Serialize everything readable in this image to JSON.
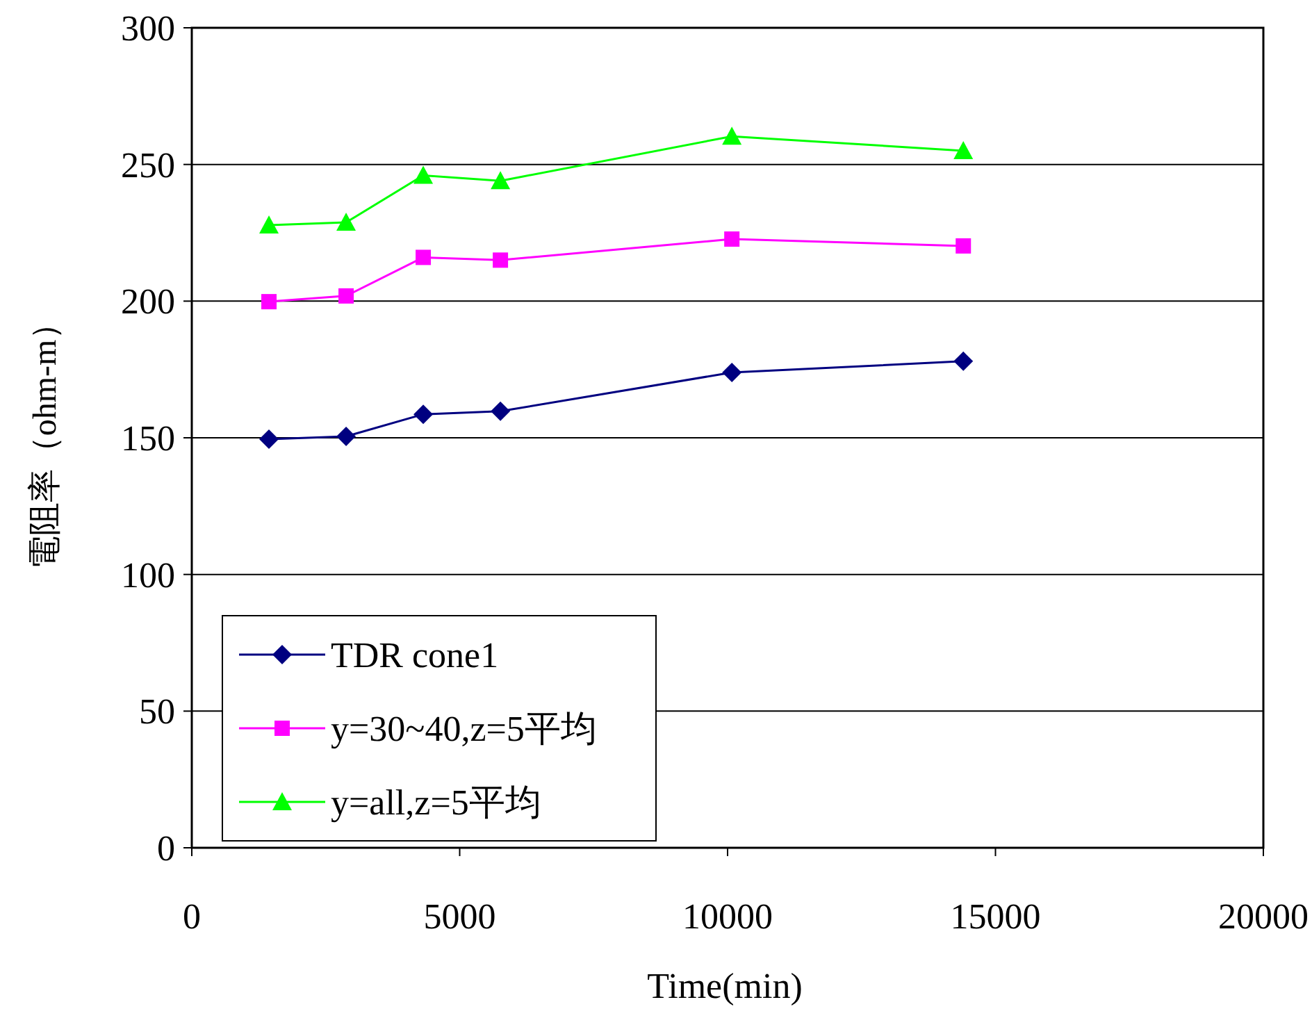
{
  "chart_data": {
    "type": "line",
    "xlabel": "Time(min)",
    "ylabel": "電阻率（ohm-m）",
    "xlim": [
      0,
      20000
    ],
    "xticks": [
      0,
      5000,
      10000,
      15000,
      20000
    ],
    "ylim": [
      0,
      300
    ],
    "yticks": [
      0,
      50,
      100,
      150,
      200,
      250,
      300
    ],
    "grid": "y",
    "legend": "bottom left",
    "line_style": "solid",
    "x": [
      1440,
      2880,
      4320,
      5760,
      10080,
      14400
    ],
    "series": [
      {
        "name": "TDR cone1",
        "color": "#000080",
        "marker": "diamond",
        "values": [
          149.5,
          150.5,
          158.6,
          159.7,
          173.9,
          178
        ]
      },
      {
        "name": "y=30~40,z=5平均",
        "color": "#ff00ff",
        "marker": "square",
        "values": [
          199.8,
          201.9,
          216,
          215,
          222.7,
          220.2
        ]
      },
      {
        "name": "y=all,z=5平均",
        "color": "#00ff00",
        "marker": "triangle",
        "values": [
          227.8,
          228.8,
          246,
          244,
          260.3,
          255
        ]
      }
    ]
  }
}
